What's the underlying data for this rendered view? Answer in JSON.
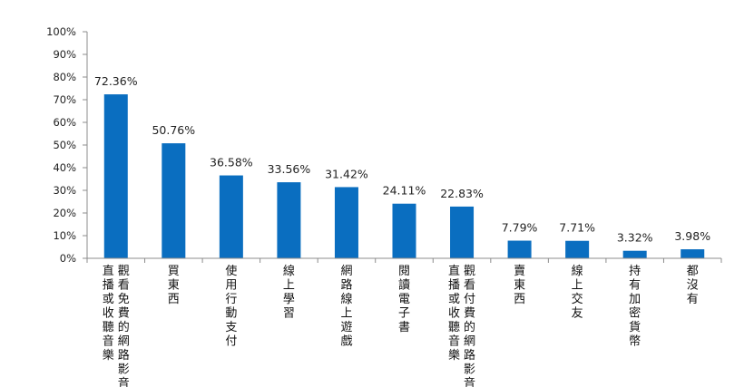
{
  "chart_data": {
    "type": "bar",
    "categories": [
      "觀看免費的網路影音、直播或收聽音樂",
      "買東西",
      "使用行動支付",
      "線上學習",
      "網路線上遊戲",
      "閱讀電子書",
      "觀看付費的網路影音、直播或收聽音樂",
      "賣東西",
      "線上交友",
      "持有加密貨幣",
      "都沒有"
    ],
    "category_lines": [
      [
        "觀看免費的網路影音、",
        "直播或收聽音樂"
      ],
      [
        "買東西"
      ],
      [
        "使用行動支付"
      ],
      [
        "線上學習"
      ],
      [
        "網路線上遊戲"
      ],
      [
        "閱讀電子書"
      ],
      [
        "觀看付費的網路影音、",
        "直播或收聽音樂"
      ],
      [
        "賣東西"
      ],
      [
        "線上交友"
      ],
      [
        "持有加密貨幣"
      ],
      [
        "都沒有"
      ]
    ],
    "values": [
      72.36,
      50.76,
      36.58,
      33.56,
      31.42,
      24.11,
      22.83,
      7.79,
      7.71,
      3.32,
      3.98
    ],
    "data_labels": [
      "72.36%",
      "50.76%",
      "36.58%",
      "33.56%",
      "31.42%",
      "24.11%",
      "22.83%",
      "7.79%",
      "7.71%",
      "3.32%",
      "3.98%"
    ],
    "y_ticks": [
      0,
      10,
      20,
      30,
      40,
      50,
      60,
      70,
      80,
      90,
      100
    ],
    "y_tick_labels": [
      "0%",
      "10%",
      "20%",
      "30%",
      "40%",
      "50%",
      "60%",
      "70%",
      "80%",
      "90%",
      "100%"
    ],
    "ylim": [
      0,
      100
    ],
    "grid": false,
    "legend": "none",
    "title": "",
    "xlabel": "",
    "ylabel": "",
    "bar_color": "#0A6EC0",
    "axis_color": "#8C8C8C"
  }
}
